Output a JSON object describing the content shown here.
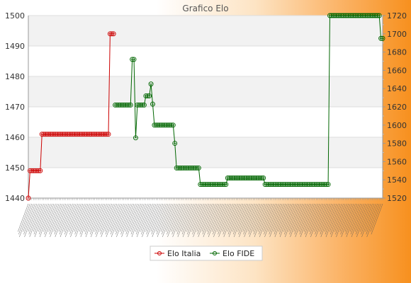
{
  "chart_data": {
    "type": "line",
    "title": "Grafico Elo",
    "legend_position": "bottom-center",
    "grid": true,
    "series": [
      {
        "name": "Elo Italia",
        "axis": "left",
        "color": "#cc0000",
        "values": [
          1440,
          1449,
          1449,
          1449,
          1449,
          1449,
          1449,
          1449,
          1461,
          1461,
          1461,
          1461,
          1461,
          1461,
          1461,
          1461,
          1461,
          1461,
          1461,
          1461,
          1461,
          1461,
          1461,
          1461,
          1461,
          1461,
          1461,
          1461,
          1461,
          1461,
          1461,
          1461,
          1461,
          1461,
          1461,
          1461,
          1461,
          1461,
          1461,
          1461,
          1461,
          1461,
          1461,
          1461,
          1461,
          1461,
          1461,
          1461,
          1494,
          1494,
          1494
        ]
      },
      {
        "name": "Elo FIDE",
        "axis": "right",
        "color": "#006600",
        "start_index": 51,
        "values": [
          1622,
          1622,
          1622,
          1622,
          1622,
          1622,
          1622,
          1622,
          1622,
          1622,
          1672,
          1672,
          1586,
          1622,
          1622,
          1622,
          1622,
          1622,
          1632,
          1632,
          1632,
          1645,
          1623,
          1600,
          1600,
          1600,
          1600,
          1600,
          1600,
          1600,
          1600,
          1600,
          1600,
          1600,
          1600,
          1580,
          1553,
          1553,
          1553,
          1553,
          1553,
          1553,
          1553,
          1553,
          1553,
          1553,
          1553,
          1553,
          1553,
          1553,
          1535,
          1535,
          1535,
          1535,
          1535,
          1535,
          1535,
          1535,
          1535,
          1535,
          1535,
          1535,
          1535,
          1535,
          1535,
          1535,
          1542,
          1542,
          1542,
          1542,
          1542,
          1542,
          1542,
          1542,
          1542,
          1542,
          1542,
          1542,
          1542,
          1542,
          1542,
          1542,
          1542,
          1542,
          1542,
          1542,
          1542,
          1542,
          1535,
          1535,
          1535,
          1535,
          1535,
          1535,
          1535,
          1535,
          1535,
          1535,
          1535,
          1535,
          1535,
          1535,
          1535,
          1535,
          1535,
          1535,
          1535,
          1535,
          1535,
          1535,
          1535,
          1535,
          1535,
          1535,
          1535,
          1535,
          1535,
          1535,
          1535,
          1535,
          1535,
          1535,
          1535,
          1535,
          1535,
          1535,
          1720,
          1720,
          1720,
          1720,
          1720,
          1720,
          1720,
          1720,
          1720,
          1720,
          1720,
          1720,
          1720,
          1720,
          1720,
          1720,
          1720,
          1720,
          1720,
          1720,
          1720,
          1720,
          1720,
          1720,
          1720,
          1720,
          1720,
          1720,
          1720,
          1720,
          1695,
          1695
        ]
      }
    ],
    "left_axis": {
      "min": 1440,
      "max": 1500,
      "ticks": [
        1440,
        1450,
        1460,
        1470,
        1480,
        1490,
        1500
      ]
    },
    "right_axis": {
      "min": 1520,
      "max": 1720,
      "ticks": [
        1520,
        1540,
        1560,
        1580,
        1600,
        1620,
        1640,
        1660,
        1680,
        1700,
        1720
      ]
    }
  }
}
